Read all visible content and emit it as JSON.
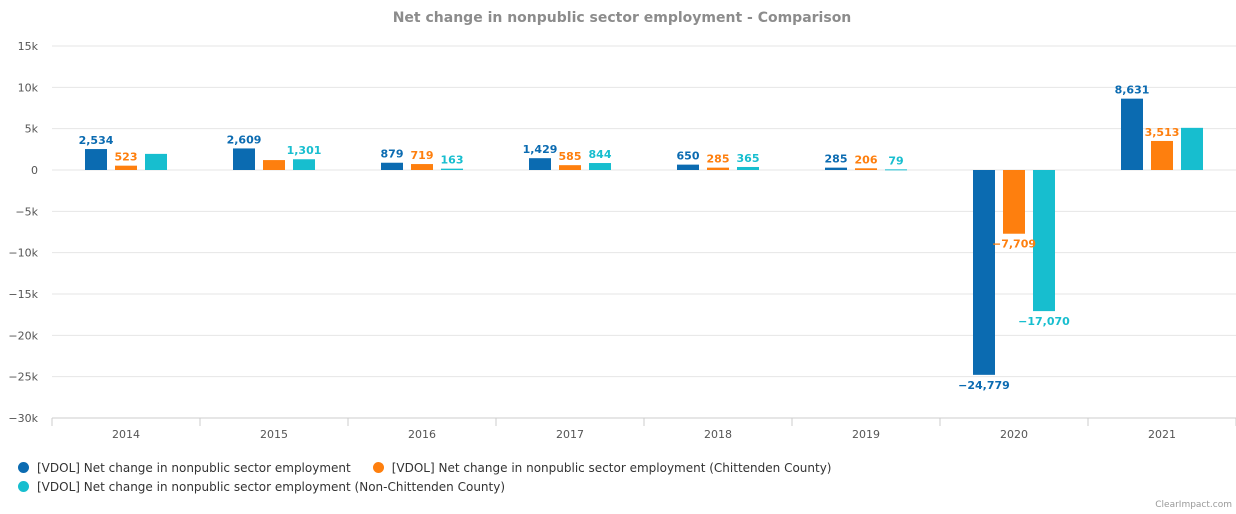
{
  "chart_data": {
    "type": "bar",
    "title": "Net change in nonpublic sector employment - Comparison",
    "categories": [
      "2014",
      "2015",
      "2016",
      "2017",
      "2018",
      "2019",
      "2020",
      "2021"
    ],
    "series": [
      {
        "name": "[VDOL] Net change in nonpublic sector employment",
        "color": "#0b6bb1",
        "values": [
          2534,
          2609,
          879,
          1429,
          650,
          285,
          -24779,
          8631
        ],
        "labels": [
          "2,534",
          "2,609",
          "879",
          "1,429",
          "650",
          "285",
          "−24,779",
          "8,631"
        ]
      },
      {
        "name": "[VDOL] Net change in nonpublic sector employment (Chittenden County)",
        "color": "#fe7f0e",
        "values": [
          523,
          1200,
          719,
          585,
          285,
          206,
          -7709,
          3513
        ],
        "labels": [
          "523",
          "",
          "719",
          "585",
          "285",
          "206",
          "−7,709",
          "3,513"
        ]
      },
      {
        "name": "[VDOL] Net change in nonpublic sector employment (Non-Chittenden County)",
        "color": "#17becf",
        "values": [
          1950,
          1301,
          163,
          844,
          365,
          79,
          -17070,
          5100
        ],
        "labels": [
          "",
          "1,301",
          "163",
          "844",
          "365",
          "79",
          "−17,070",
          ""
        ]
      }
    ],
    "yticks": [
      15000,
      10000,
      5000,
      0,
      -5000,
      -10000,
      -15000,
      -20000,
      -25000,
      -30000
    ],
    "ytick_labels": [
      "15k",
      "10k",
      "5k",
      "0",
      "−5k",
      "−10k",
      "−15k",
      "−20k",
      "−25k",
      "−30k"
    ],
    "ylim": [
      -30000,
      15000
    ],
    "grid": true,
    "legend_position": "bottom-left"
  },
  "legend": {
    "row1": [
      "[VDOL] Net change in nonpublic sector employment",
      "[VDOL] Net change in nonpublic sector employment (Chittenden County)"
    ],
    "row2": [
      "[VDOL] Net change in nonpublic sector employment (Non-Chittenden County)"
    ]
  },
  "credit": "ClearImpact.com"
}
